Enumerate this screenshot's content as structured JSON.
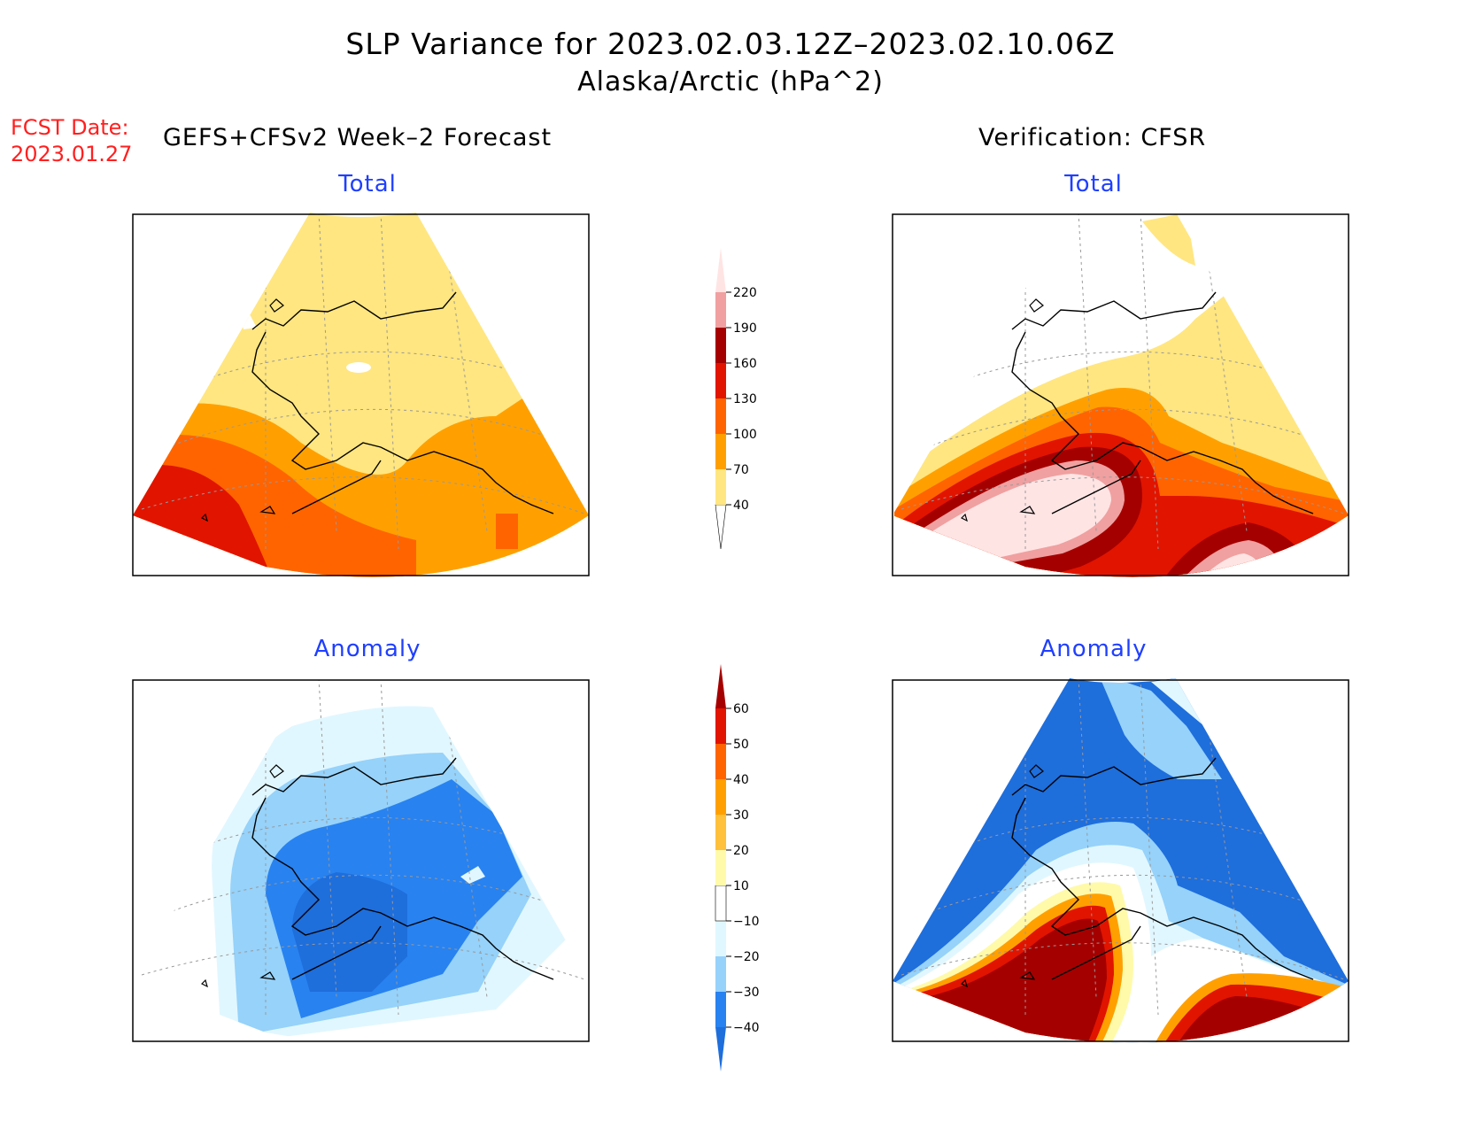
{
  "title": {
    "line1": "SLP Variance for 2023.02.03.12Z–2023.02.10.06Z",
    "line2": "Alaska/Arctic (hPa^2)"
  },
  "fcst": {
    "label": "FCST Date:",
    "date": "2023.01.27"
  },
  "left_heading": "GEFS+CFSv2 Week–2 Forecast",
  "right_heading": "Verification: CFSR",
  "panels": {
    "forecast_total": {
      "label": "Total"
    },
    "verif_total": {
      "label": "Total"
    },
    "forecast_anom": {
      "label": "Anomaly"
    },
    "verif_anom": {
      "label": "Anomaly"
    }
  },
  "colorbars": {
    "total": {
      "ticks": [
        "40",
        "70",
        "100",
        "130",
        "160",
        "190",
        "220"
      ],
      "colors": [
        "#ffffff",
        "#ffe680",
        "#ffa000",
        "#ff6400",
        "#e11400",
        "#a50000",
        "#f0a0a0",
        "#ffe4e4"
      ]
    },
    "anomaly": {
      "ticks": [
        "−40",
        "−30",
        "−20",
        "−10",
        "10",
        "20",
        "30",
        "40",
        "50",
        "60"
      ],
      "colors": [
        "#1e6edc",
        "#2882f0",
        "#96d2fa",
        "#e1f7ff",
        "#ffffff",
        "#fffaaa",
        "#ffc03c",
        "#ffa000",
        "#ff6400",
        "#e11400",
        "#a50000"
      ]
    }
  }
}
